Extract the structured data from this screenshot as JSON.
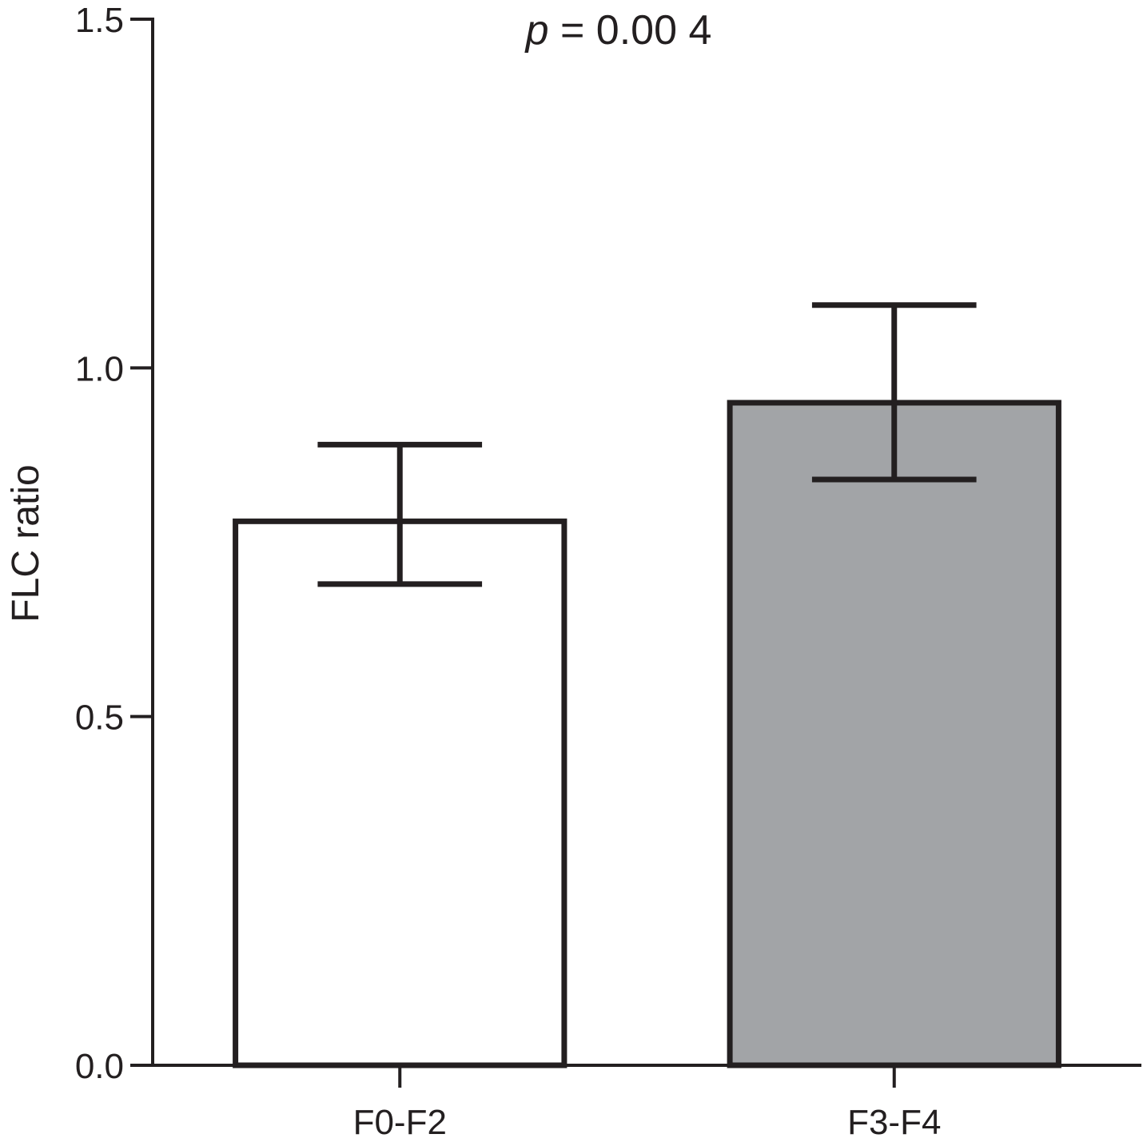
{
  "chart_data": {
    "type": "bar",
    "annotation": {
      "italic": "p",
      "text": " = 0.00 4"
    },
    "xlabel": "",
    "ylabel": "FLC ratio",
    "ylim": [
      0,
      1.5
    ],
    "yticks": [
      "0.0",
      "0.5",
      "1.0",
      "1.5"
    ],
    "categories": [
      "F0-F2",
      "F3-F4"
    ],
    "values": [
      0.78,
      0.95
    ],
    "error_bars": [
      {
        "upper": 0.89,
        "lower": 0.69
      },
      {
        "upper": 1.09,
        "lower": 0.84
      }
    ],
    "bar_colors": [
      "#ffffff",
      "#a2a4a7"
    ],
    "edge_color": "#231f20",
    "grid": false
  }
}
